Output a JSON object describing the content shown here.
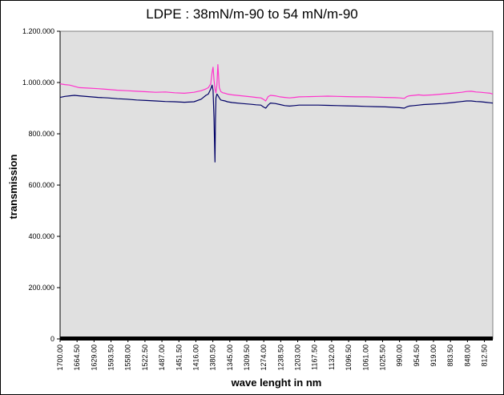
{
  "chart_data": {
    "type": "line",
    "title": "LDPE : 38mN/m-90 to 54 mN/m-90",
    "xlabel": "wave lenght  in nm",
    "ylabel": "transmission",
    "x_reversed": true,
    "x_range": [
      1700.0,
      795.0
    ],
    "ylim": [
      0,
      1200
    ],
    "y_tick_values": [
      0,
      200,
      400,
      600,
      800,
      1000,
      1200
    ],
    "y_tick_labels": [
      "0",
      "200.000",
      "400.000",
      "600.000",
      "800.000",
      "1.000.000",
      "1.200.000"
    ],
    "x_tick_labels": [
      "1700.00",
      "1664.50",
      "1629.00",
      "1593.50",
      "1558.00",
      "1522.50",
      "1487.00",
      "1451.50",
      "1416.00",
      "1380.50",
      "1345.00",
      "1309.50",
      "1274.00",
      "1238.50",
      "1203.00",
      "1167.50",
      "1132.00",
      "1096.50",
      "1061.00",
      "1025.50",
      "990.00",
      "954.50",
      "919.00",
      "883.50",
      "848.00",
      "812.50"
    ],
    "x_tick_values": [
      1700.0,
      1664.5,
      1629.0,
      1593.5,
      1558.0,
      1522.5,
      1487.0,
      1451.5,
      1416.0,
      1380.5,
      1345.0,
      1309.5,
      1274.0,
      1238.5,
      1203.0,
      1167.5,
      1132.0,
      1096.5,
      1061.0,
      1025.5,
      990.0,
      954.5,
      919.0,
      883.5,
      848.0,
      812.5
    ],
    "grid": false,
    "legend": "none",
    "plot_background": "#e0e0e0",
    "series": [
      {
        "color": "#ff33cc",
        "x": [
          1700,
          1690,
          1680,
          1670,
          1660,
          1640,
          1620,
          1600,
          1580,
          1560,
          1540,
          1520,
          1500,
          1480,
          1460,
          1440,
          1420,
          1405,
          1395,
          1390,
          1385,
          1382,
          1380,
          1378,
          1376,
          1374,
          1372,
          1370,
          1367,
          1364,
          1360,
          1355,
          1350,
          1340,
          1320,
          1300,
          1290,
          1280,
          1275,
          1270,
          1265,
          1260,
          1250,
          1240,
          1230,
          1220,
          1210,
          1200,
          1180,
          1160,
          1140,
          1120,
          1100,
          1080,
          1060,
          1040,
          1020,
          1000,
          990,
          980,
          975,
          970,
          960,
          950,
          940,
          920,
          900,
          880,
          860,
          850,
          840,
          830,
          820,
          810,
          800,
          795
        ],
        "y": [
          995,
          992,
          990,
          985,
          980,
          978,
          976,
          973,
          970,
          968,
          966,
          964,
          962,
          963,
          960,
          958,
          962,
          968,
          975,
          980,
          995,
          1040,
          1060,
          1010,
          975,
          960,
          990,
          1070,
          980,
          965,
          960,
          958,
          955,
          952,
          948,
          944,
          942,
          940,
          935,
          928,
          945,
          950,
          948,
          944,
          942,
          940,
          942,
          944,
          945,
          946,
          947,
          946,
          945,
          944,
          944,
          943,
          942,
          941,
          940,
          938,
          945,
          948,
          950,
          952,
          950,
          952,
          955,
          958,
          962,
          965,
          966,
          963,
          962,
          960,
          958,
          955
        ]
      },
      {
        "color": "#000066",
        "x": [
          1700,
          1690,
          1680,
          1670,
          1660,
          1640,
          1620,
          1600,
          1580,
          1560,
          1540,
          1520,
          1500,
          1480,
          1460,
          1440,
          1420,
          1405,
          1395,
          1390,
          1385,
          1382,
          1380,
          1378,
          1377,
          1376,
          1375,
          1374,
          1372,
          1370,
          1367,
          1364,
          1360,
          1355,
          1350,
          1340,
          1320,
          1300,
          1290,
          1280,
          1275,
          1270,
          1265,
          1260,
          1250,
          1240,
          1230,
          1220,
          1210,
          1200,
          1180,
          1160,
          1140,
          1120,
          1100,
          1080,
          1060,
          1040,
          1020,
          1000,
          990,
          980,
          975,
          970,
          960,
          950,
          940,
          920,
          900,
          880,
          860,
          850,
          840,
          830,
          820,
          810,
          800,
          795
        ],
        "y": [
          942,
          946,
          948,
          950,
          948,
          945,
          942,
          940,
          937,
          935,
          932,
          930,
          928,
          926,
          925,
          923,
          925,
          935,
          950,
          955,
          975,
          990,
          970,
          860,
          770,
          690,
          860,
          940,
          955,
          950,
          940,
          932,
          930,
          928,
          925,
          922,
          918,
          915,
          913,
          912,
          905,
          900,
          912,
          920,
          918,
          914,
          910,
          908,
          910,
          912,
          912,
          912,
          911,
          910,
          909,
          908,
          907,
          906,
          905,
          903,
          902,
          900,
          905,
          908,
          910,
          912,
          914,
          916,
          918,
          922,
          926,
          928,
          928,
          926,
          925,
          923,
          921,
          920
        ]
      }
    ]
  }
}
